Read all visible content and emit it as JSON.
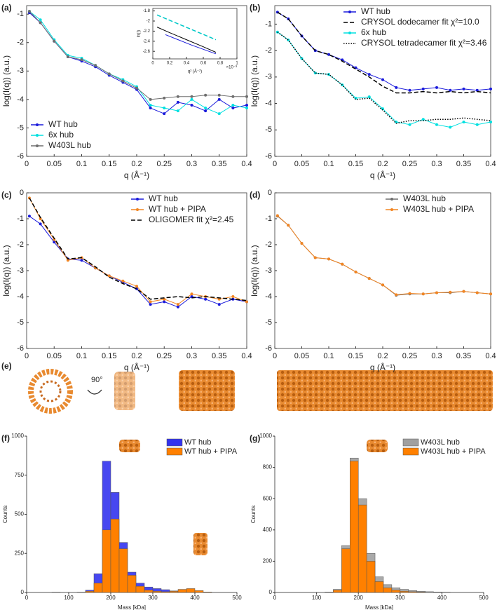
{
  "chart_data": [
    {
      "type": "line",
      "label": "(a)",
      "xlabel": "q (Å⁻¹)",
      "ylabel": "log(I(q)) (a.u.)",
      "legend": "lower left",
      "x": [
        0.005,
        0.025,
        0.05,
        0.075,
        0.1,
        0.125,
        0.15,
        0.175,
        0.2,
        0.225,
        0.25,
        0.275,
        0.3,
        0.325,
        0.35,
        0.375,
        0.4
      ],
      "series": [
        {
          "name": "WT hub",
          "color": "#1a1adb",
          "values": [
            -0.95,
            -1.3,
            -1.95,
            -2.5,
            -2.65,
            -2.85,
            -3.15,
            -3.4,
            -3.65,
            -4.3,
            -4.5,
            -4.1,
            -4.2,
            -4.4,
            -4.0,
            -4.3,
            -4.2
          ]
        },
        {
          "name": "6x hub",
          "color": "#00e0e0",
          "values": [
            -0.9,
            -1.2,
            -1.9,
            -2.45,
            -2.55,
            -2.8,
            -3.1,
            -3.3,
            -3.55,
            -4.2,
            -4.3,
            -4.4,
            -4.0,
            -4.3,
            -4.5,
            -4.2,
            -4.3
          ]
        },
        {
          "name": "W403L hub",
          "color": "#6e6e6e",
          "values": [
            -0.9,
            -1.3,
            -1.95,
            -2.5,
            -2.6,
            -2.8,
            -3.1,
            -3.35,
            -3.6,
            -4.0,
            -3.95,
            -3.9,
            -3.9,
            -3.85,
            -3.85,
            -3.9,
            -3.9
          ]
        }
      ],
      "xlim": [
        0,
        0.4
      ],
      "xticks": [
        0,
        0.05,
        0.1,
        0.15,
        0.2,
        0.25,
        0.3,
        0.35,
        0.4
      ],
      "ylim": [
        -6,
        -0.7
      ],
      "yticks": [
        -6,
        -5,
        -4,
        -3,
        -2,
        -1
      ]
    },
    {
      "type": "line",
      "xlabel": "q² (Å⁻²)",
      "ylabel": "ln(I)",
      "x_multiplier": "×10⁻³",
      "series": [
        {
          "color": "#00c8c8",
          "linestyle": "dashed",
          "x": [
            0.05,
            0.75
          ],
          "values": [
            -1.88,
            -2.37
          ]
        },
        {
          "color": "#000000",
          "x": [
            0.05,
            0.2,
            0.4,
            0.6,
            0.75
          ],
          "values": [
            -2.12,
            -2.23,
            -2.37,
            -2.51,
            -2.62
          ]
        },
        {
          "color": "#1a1adb",
          "x": [
            0.15,
            0.3,
            0.45,
            0.6,
            0.75
          ],
          "values": [
            -2.27,
            -2.37,
            -2.47,
            -2.56,
            -2.65
          ]
        }
      ],
      "xlim": [
        0,
        1
      ],
      "xticks": [
        0,
        0.2,
        0.4,
        0.6,
        0.8,
        1
      ],
      "ylim": [
        -2.75,
        -1.75
      ],
      "yticks": [
        -2.6,
        -2.4,
        -2.2,
        -2,
        -1.8
      ]
    },
    {
      "type": "line",
      "label": "(b)",
      "xlabel": "q (Å⁻¹)",
      "ylabel": "log(I(q)) (a.u.)",
      "legend": "upper right",
      "x": [
        0.005,
        0.025,
        0.05,
        0.075,
        0.1,
        0.125,
        0.15,
        0.175,
        0.2,
        0.225,
        0.25,
        0.275,
        0.3,
        0.325,
        0.35,
        0.375,
        0.4
      ],
      "series": [
        {
          "name": "WT hub",
          "color": "#1a1adb",
          "values": [
            -0.55,
            -0.8,
            -1.45,
            -2.0,
            -2.15,
            -2.35,
            -2.65,
            -2.9,
            -3.1,
            -3.4,
            -3.5,
            -3.45,
            -3.4,
            -3.5,
            -3.45,
            -3.5,
            -3.45
          ]
        },
        {
          "name": "CRYSOL dodecamer fit χ²=10.0",
          "color": "#000000",
          "linestyle": "dashed",
          "values": [
            -0.55,
            -0.8,
            -1.45,
            -2.0,
            -2.15,
            -2.4,
            -2.7,
            -3.0,
            -3.35,
            -3.6,
            -3.6,
            -3.55,
            -3.6,
            -3.55,
            -3.6,
            -3.55,
            -3.6
          ]
        },
        {
          "name": "6x hub",
          "color": "#00e0e0",
          "values": [
            -1.3,
            -1.6,
            -2.3,
            -2.85,
            -2.9,
            -3.3,
            -3.8,
            -3.75,
            -4.2,
            -4.7,
            -4.8,
            -4.6,
            -4.8,
            -4.9,
            -4.7,
            -4.8,
            -4.7
          ]
        },
        {
          "name": "CRYSOL tetradecamer fit χ²=3.46",
          "color": "#000000",
          "linestyle": "dotted",
          "values": [
            -1.3,
            -1.6,
            -2.3,
            -2.85,
            -2.9,
            -3.3,
            -3.85,
            -3.8,
            -4.25,
            -4.75,
            -4.65,
            -4.65,
            -4.6,
            -4.6,
            -4.55,
            -4.6,
            -4.65
          ]
        }
      ],
      "xlim": [
        0,
        0.4
      ],
      "xticks": [
        0,
        0.05,
        0.1,
        0.15,
        0.2,
        0.25,
        0.3,
        0.35,
        0.4
      ],
      "ylim": [
        -6,
        -0.3
      ],
      "yticks": [
        -6,
        -5,
        -4,
        -3,
        -2,
        -1
      ]
    },
    {
      "type": "line",
      "label": "(c)",
      "xlabel": "q (Å⁻¹)",
      "ylabel": "log(I(q)) (a.u.)",
      "legend": "upper right",
      "x": [
        0.005,
        0.025,
        0.05,
        0.075,
        0.1,
        0.125,
        0.15,
        0.175,
        0.2,
        0.225,
        0.25,
        0.275,
        0.3,
        0.325,
        0.35,
        0.375,
        0.4
      ],
      "series": [
        {
          "name": "WT hub",
          "color": "#1a1adb",
          "values": [
            -0.9,
            -1.2,
            -1.9,
            -2.55,
            -2.6,
            -2.9,
            -3.2,
            -3.45,
            -3.7,
            -4.3,
            -4.2,
            -4.4,
            -4.0,
            -4.1,
            -4.3,
            -4.1,
            -4.2
          ]
        },
        {
          "name": "WT hub + PIPA",
          "color": "#f28522",
          "values": [
            -0.2,
            -1.0,
            -1.8,
            -2.6,
            -2.5,
            -2.9,
            -3.2,
            -3.4,
            -3.6,
            -4.2,
            -4.1,
            -4.3,
            -3.9,
            -4.0,
            -4.1,
            -4.0,
            -4.2
          ]
        },
        {
          "name": "OLIGOMER fit χ²=2.45",
          "color": "#000000",
          "linestyle": "dashed",
          "values": [
            -0.2,
            -0.95,
            -1.75,
            -2.55,
            -2.5,
            -2.85,
            -3.25,
            -3.5,
            -3.7,
            -4.1,
            -4.05,
            -4.0,
            -4.05,
            -4.0,
            -4.05,
            -4.1,
            -4.15
          ]
        }
      ],
      "xlim": [
        0,
        0.4
      ],
      "xticks": [
        0,
        0.05,
        0.1,
        0.15,
        0.2,
        0.25,
        0.3,
        0.35,
        0.4
      ],
      "ylim": [
        -6,
        0
      ],
      "yticks": [
        -6,
        -5,
        -4,
        -3,
        -2,
        -1,
        0
      ]
    },
    {
      "type": "line",
      "label": "(d)",
      "xlabel": "q (Å⁻¹)",
      "ylabel": "log(I(q)) (a.u.)",
      "legend": "upper right",
      "x": [
        0.005,
        0.025,
        0.05,
        0.075,
        0.1,
        0.125,
        0.15,
        0.175,
        0.2,
        0.225,
        0.25,
        0.275,
        0.3,
        0.325,
        0.35,
        0.375,
        0.4
      ],
      "series": [
        {
          "name": "W403L hub",
          "color": "#6e6e6e",
          "values": [
            -0.9,
            -1.25,
            -1.95,
            -2.5,
            -2.55,
            -2.75,
            -3.05,
            -3.3,
            -3.55,
            -3.95,
            -3.9,
            -3.9,
            -3.85,
            -3.85,
            -3.8,
            -3.85,
            -3.9
          ]
        },
        {
          "name": "W403L hub + PIPA",
          "color": "#f28522",
          "values": [
            -0.88,
            -1.25,
            -1.95,
            -2.5,
            -2.55,
            -2.75,
            -3.05,
            -3.3,
            -3.55,
            -3.93,
            -3.88,
            -3.9,
            -3.85,
            -3.83,
            -3.8,
            -3.85,
            -3.9
          ]
        }
      ],
      "xlim": [
        0,
        0.4
      ],
      "xticks": [
        0,
        0.05,
        0.1,
        0.15,
        0.2,
        0.25,
        0.3,
        0.35,
        0.4
      ],
      "ylim": [
        -6,
        0
      ],
      "yticks": [
        -6,
        -5,
        -4,
        -3,
        -2,
        -1,
        0
      ]
    },
    {
      "type": "histogram",
      "label": "(f)",
      "xlabel": "Mass [kDa]",
      "ylabel": "Counts",
      "legend": "upper right",
      "bins": [
        0,
        20,
        40,
        60,
        80,
        100,
        120,
        140,
        160,
        180,
        200,
        220,
        240,
        260,
        280,
        300,
        320,
        340,
        360,
        380,
        400,
        420,
        440,
        460,
        480,
        500
      ],
      "series": [
        {
          "name": "WT hub",
          "color": "#3333ee",
          "values": [
            0,
            0,
            0,
            0,
            0,
            0,
            0,
            15,
            120,
            840,
            640,
            320,
            130,
            60,
            35,
            25,
            18,
            10,
            0,
            0,
            0,
            0,
            0,
            0,
            0
          ]
        },
        {
          "name": "WT hub + PIPA",
          "color": "#ff8000",
          "values": [
            0,
            0,
            0,
            2,
            0,
            0,
            2,
            8,
            60,
            400,
            470,
            280,
            110,
            40,
            15,
            8,
            5,
            8,
            20,
            25,
            12,
            3,
            0,
            0,
            0
          ]
        }
      ],
      "xlim": [
        0,
        500
      ],
      "xticks": [
        0,
        100,
        200,
        300,
        400,
        500
      ],
      "ylim": [
        0,
        1000
      ],
      "yticks": [
        0,
        250,
        500,
        750,
        1000
      ]
    },
    {
      "type": "histogram",
      "label": "(g)",
      "xlabel": "Mass [kDa]",
      "ylabel": "Counts",
      "legend": "upper right",
      "bins": [
        0,
        20,
        40,
        60,
        80,
        100,
        120,
        140,
        160,
        180,
        200,
        220,
        240,
        260,
        280,
        300,
        320,
        340,
        360,
        380,
        400,
        420,
        440,
        460,
        480,
        500
      ],
      "series": [
        {
          "name": "W403L hub",
          "color": "#a0a0a0",
          "values": [
            0,
            0,
            0,
            0,
            0,
            0,
            2,
            20,
            300,
            860,
            600,
            250,
            100,
            50,
            30,
            20,
            12,
            8,
            5,
            3,
            2,
            0,
            0,
            0,
            0
          ]
        },
        {
          "name": "W403L hub + PIPA",
          "color": "#ff8000",
          "values": [
            0,
            0,
            0,
            0,
            0,
            0,
            2,
            15,
            280,
            840,
            560,
            200,
            70,
            30,
            15,
            8,
            5,
            3,
            0,
            0,
            0,
            0,
            0,
            0,
            0
          ]
        }
      ],
      "xlim": [
        0,
        500
      ],
      "xticks": [
        0,
        100,
        200,
        300,
        400,
        500
      ],
      "ylim": [
        0,
        1000
      ],
      "yticks": [
        0,
        200,
        400,
        600,
        800,
        1000
      ]
    }
  ],
  "panel_e": {
    "label": "(e)",
    "rotation": "90°"
  }
}
